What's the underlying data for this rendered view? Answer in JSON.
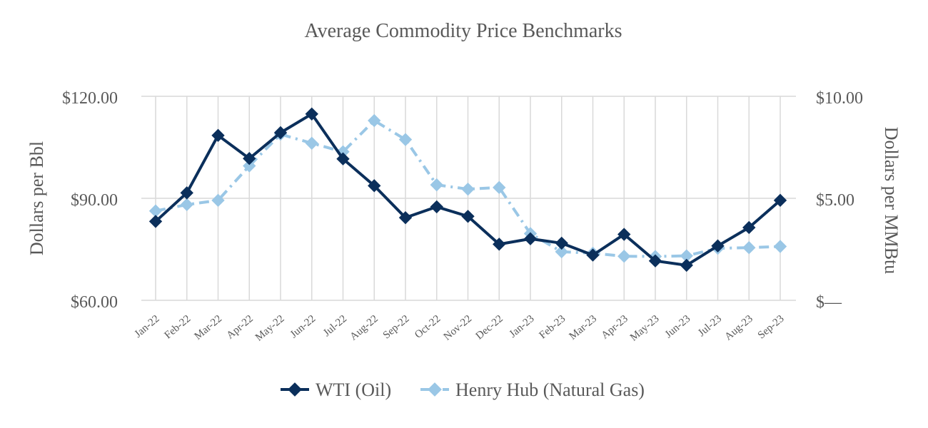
{
  "chart_data": {
    "type": "line",
    "title": "Average Commodity Price Benchmarks",
    "categories": [
      "Jan-22",
      "Feb-22",
      "Mar-22",
      "Apr-22",
      "May-22",
      "Jun-22",
      "Jul-22",
      "Aug-22",
      "Sep-22",
      "Oct-22",
      "Nov-22",
      "Dec-22",
      "Jan-23",
      "Feb-23",
      "Mar-23",
      "Apr-23",
      "May-23",
      "Jun-23",
      "Jul-23",
      "Aug-23",
      "Sep-23"
    ],
    "y_left": {
      "label": "Dollars per Bbl",
      "range": [
        60,
        120
      ],
      "ticks": [
        60,
        90,
        120
      ],
      "tick_labels": [
        "$60.00",
        "$90.00",
        "$120.00"
      ]
    },
    "y_right": {
      "label": "Dollars per MMBtu",
      "range": [
        0,
        10
      ],
      "ticks": [
        0,
        5,
        10
      ],
      "tick_labels": [
        "$—",
        "$5.00",
        "$10.00"
      ]
    },
    "series": [
      {
        "name": "WTI (Oil)",
        "axis": "left",
        "color": "#0b2f5b",
        "style": "solid",
        "values": [
          83.2,
          91.6,
          108.5,
          101.7,
          109.3,
          114.8,
          101.6,
          93.7,
          84.3,
          87.5,
          84.7,
          76.5,
          78.1,
          76.8,
          73.3,
          79.4,
          71.6,
          70.3,
          76.0,
          81.4,
          89.4
        ]
      },
      {
        "name": "Henry Hub (Natural Gas)",
        "axis": "right",
        "color": "#9ac7e6",
        "style": "dash-dot",
        "values": [
          4.38,
          4.69,
          4.9,
          6.59,
          8.14,
          7.7,
          7.28,
          8.81,
          7.88,
          5.66,
          5.45,
          5.53,
          3.27,
          2.38,
          2.31,
          2.16,
          2.15,
          2.18,
          2.55,
          2.58,
          2.64
        ]
      }
    ],
    "legend_position": "bottom-center"
  }
}
